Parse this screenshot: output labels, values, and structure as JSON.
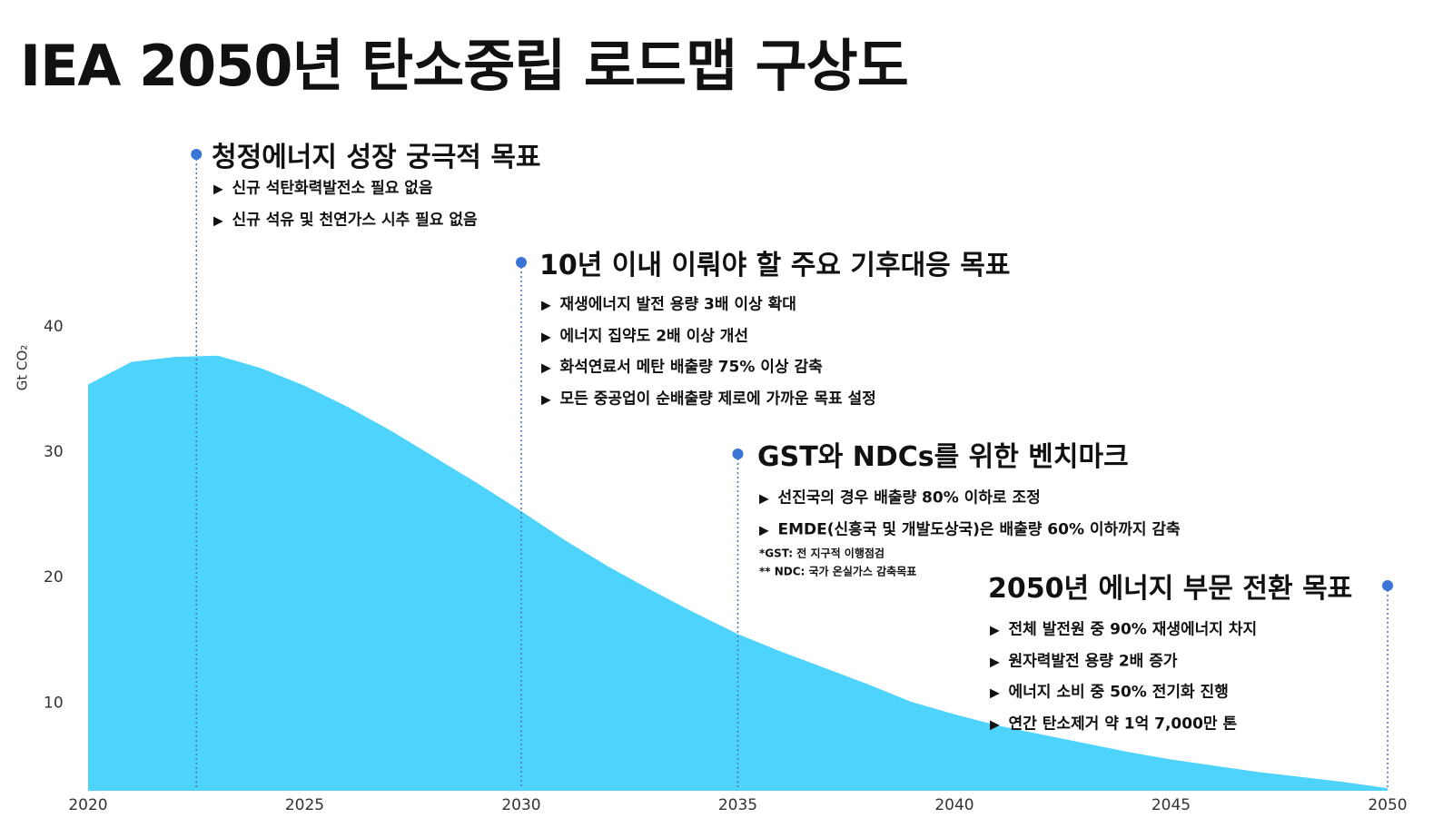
{
  "chart_data": {
    "type": "area",
    "title": "IEA 2050년 탄소중립 로드맵 구상도",
    "y_label": "Gt CO₂",
    "x": [
      2020,
      2021,
      2022,
      2023,
      2024,
      2025,
      2026,
      2027,
      2028,
      2029,
      2030,
      2031,
      2032,
      2033,
      2034,
      2035,
      2036,
      2037,
      2038,
      2039,
      2040,
      2041,
      2042,
      2043,
      2044,
      2045,
      2046,
      2047,
      2048,
      2049,
      2050
    ],
    "values": [
      35.4,
      37.2,
      37.6,
      37.7,
      36.7,
      35.3,
      33.6,
      31.7,
      29.6,
      27.5,
      25.3,
      23.0,
      20.9,
      19.0,
      17.2,
      15.5,
      14.1,
      12.8,
      11.5,
      10.1,
      9.1,
      8.2,
      7.5,
      6.8,
      6.1,
      5.5,
      5.0,
      4.5,
      4.1,
      3.7,
      3.2
    ],
    "color": "#4dd3fc",
    "xlim": [
      2020,
      2050
    ],
    "xticks": [
      2020,
      2025,
      2030,
      2035,
      2040,
      2045,
      2050
    ],
    "ylim": [
      3,
      40
    ],
    "yticks": [
      10,
      20,
      30,
      40
    ],
    "annotations": [
      {
        "x": 2022.5,
        "title": "청정에너지 성장 궁극적 목표",
        "items": [
          "신규 석탄화력발전소 필요 없음",
          "신규 석유 및 천연가스 시추 필요 없음"
        ]
      },
      {
        "x": 2030,
        "title": "10년 이내 이뤄야 할 주요 기후대응 목표",
        "items": [
          "재생에너지 발전 용량 3배 이상 확대",
          "에너지 집약도 2배 이상 개선",
          "화석연료서 메탄 배출량 75% 이상 감축",
          "모든 중공업이 순배출량 제로에 가까운 목표 설정"
        ]
      },
      {
        "x": 2035,
        "title": "GST와 NDCs를 위한 벤치마크",
        "items": [
          "선진국의 경우 배출량 80% 이하로 조정",
          "EMDE(신흥국 및 개발도상국)은 배출량 60% 이하까지 감축"
        ],
        "notes": [
          "*GST: 전 지구적 이행점검",
          "** NDC: 국가 온실가스 감축목표"
        ]
      },
      {
        "x": 2050,
        "title": "2050년 에너지 부문 전환 목표",
        "items": [
          "전체 발전원 중 90% 재생에너지 차지",
          "원자력발전 용량 2배 증가",
          "에너지 소비 중 50% 전기화 진행",
          "연간 탄소제거 약 1억 7,000만 톤"
        ]
      }
    ]
  }
}
